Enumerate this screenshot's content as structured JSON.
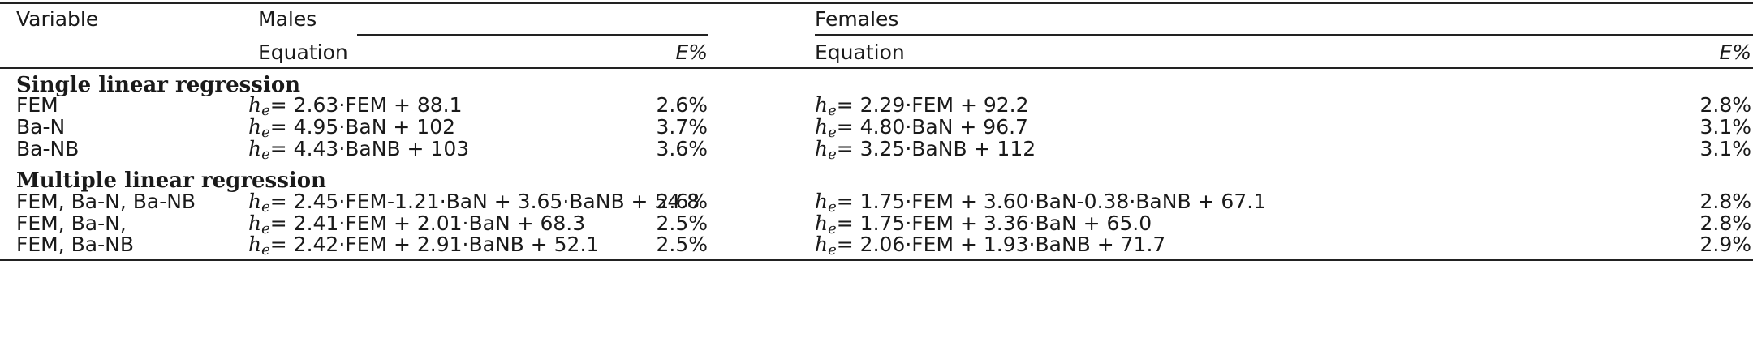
{
  "header": {
    "variable": "Variable",
    "males": "Males",
    "females": "Females",
    "equation": "Equation",
    "error": "E%"
  },
  "sections": [
    {
      "title": "Single linear regression",
      "rows": [
        {
          "variable": "FEM",
          "male_eq": "= 2.63·FEM + 88.1",
          "male_e": "2.6%",
          "female_eq": "= 2.29·FEM + 92.2",
          "female_e": "2.8%"
        },
        {
          "variable": "Ba-N",
          "male_eq": "= 4.95·BaN + 102",
          "male_e": "3.7%",
          "female_eq": "= 4.80·BaN + 96.7",
          "female_e": "3.1%"
        },
        {
          "variable": "Ba-NB",
          "male_eq": "= 4.43·BaNB + 103",
          "male_e": "3.6%",
          "female_eq": "= 3.25·BaNB + 112",
          "female_e": "3.1%"
        }
      ]
    },
    {
      "title": "Multiple linear regression",
      "rows": [
        {
          "variable": "FEM, Ba-N, Ba-NB",
          "male_eq": "= 2.45·FEM-1.21·BaN + 3.65·BaNB + 54.8",
          "male_e": "2.6%",
          "female_eq": "= 1.75·FEM + 3.60·BaN-0.38·BaNB + 67.1",
          "female_e": "2.8%"
        },
        {
          "variable": "FEM, Ba-N,",
          "male_eq": "= 2.41·FEM + 2.01·BaN + 68.3",
          "male_e": "2.5%",
          "female_eq": "= 1.75·FEM + 3.36·BaN + 65.0",
          "female_e": "2.8%"
        },
        {
          "variable": "FEM, Ba-NB",
          "male_eq": "= 2.42·FEM + 2.91·BaNB + 52.1",
          "male_e": "2.5%",
          "female_eq": "= 2.06·FEM + 1.93·BaNB + 71.7",
          "female_e": "2.9%"
        }
      ]
    }
  ],
  "symbol": {
    "h": "h",
    "sub": "e"
  }
}
